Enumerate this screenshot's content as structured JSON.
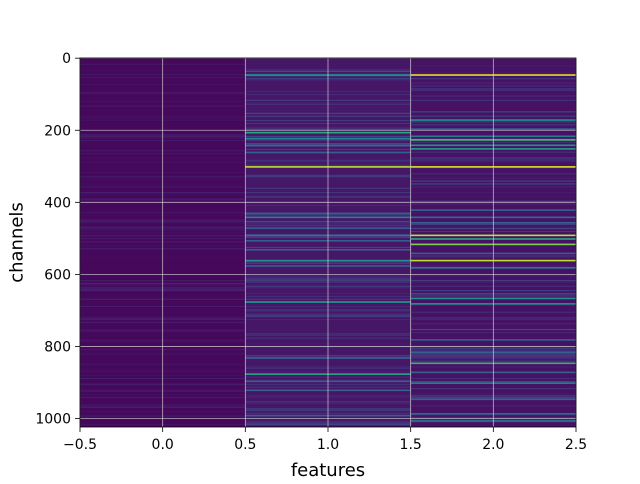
{
  "chart_data": {
    "type": "heatmap",
    "title": "",
    "xlabel": "features",
    "ylabel": "channels",
    "xlim": [
      -0.5,
      2.5
    ],
    "ylim": [
      1023.5,
      -0.5
    ],
    "y_axis_inverted": true,
    "grid": true,
    "colormap": "viridis",
    "n_rows": 1024,
    "n_cols": 3,
    "x_ticks": [
      -0.5,
      0.0,
      0.5,
      1.0,
      1.5,
      2.0,
      2.5
    ],
    "x_tick_labels": [
      "−0.5",
      "0.0",
      "0.5",
      "1.0",
      "1.5",
      "2.0",
      "2.5"
    ],
    "y_ticks": [
      0,
      200,
      400,
      600,
      800,
      1000
    ],
    "y_tick_labels": [
      "0",
      "200",
      "400",
      "600",
      "800",
      "1000"
    ],
    "columns": [
      {
        "feature": 0,
        "background_value": 0.02,
        "highlights": []
      },
      {
        "feature": 1,
        "background_value": 0.06,
        "highlights": [
          {
            "row": 45,
            "value": 0.5
          },
          {
            "row": 205,
            "value": 0.6
          },
          {
            "row": 222,
            "value": 0.45
          },
          {
            "row": 240,
            "value": 0.35
          },
          {
            "row": 260,
            "value": 0.3
          },
          {
            "row": 300,
            "value": 0.9
          },
          {
            "row": 430,
            "value": 0.3
          },
          {
            "row": 440,
            "value": 0.45
          },
          {
            "row": 470,
            "value": 0.3
          },
          {
            "row": 490,
            "value": 0.4
          },
          {
            "row": 505,
            "value": 0.3
          },
          {
            "row": 530,
            "value": 0.3
          },
          {
            "row": 560,
            "value": 0.5
          },
          {
            "row": 575,
            "value": 0.3
          },
          {
            "row": 675,
            "value": 0.55
          },
          {
            "row": 830,
            "value": 0.3
          },
          {
            "row": 875,
            "value": 0.6
          },
          {
            "row": 895,
            "value": 0.3
          },
          {
            "row": 920,
            "value": 0.3
          },
          {
            "row": 990,
            "value": 0.3
          }
        ]
      },
      {
        "feature": 2,
        "background_value": 0.05,
        "highlights": [
          {
            "row": 45,
            "value": 0.95
          },
          {
            "row": 170,
            "value": 0.5
          },
          {
            "row": 195,
            "value": 0.3
          },
          {
            "row": 215,
            "value": 0.4
          },
          {
            "row": 225,
            "value": 0.7
          },
          {
            "row": 240,
            "value": 0.5
          },
          {
            "row": 250,
            "value": 0.55
          },
          {
            "row": 300,
            "value": 0.95
          },
          {
            "row": 420,
            "value": 0.3
          },
          {
            "row": 440,
            "value": 0.35
          },
          {
            "row": 455,
            "value": 0.3
          },
          {
            "row": 490,
            "value": 0.9
          },
          {
            "row": 500,
            "value": 0.6
          },
          {
            "row": 515,
            "value": 0.8
          },
          {
            "row": 540,
            "value": 0.3
          },
          {
            "row": 560,
            "value": 0.9
          },
          {
            "row": 580,
            "value": 0.4
          },
          {
            "row": 665,
            "value": 0.5
          },
          {
            "row": 680,
            "value": 0.5
          },
          {
            "row": 780,
            "value": 0.3
          },
          {
            "row": 815,
            "value": 0.3
          },
          {
            "row": 845,
            "value": 0.65
          },
          {
            "row": 870,
            "value": 0.3
          },
          {
            "row": 900,
            "value": 0.45
          },
          {
            "row": 945,
            "value": 0.3
          },
          {
            "row": 985,
            "value": 0.3
          },
          {
            "row": 1005,
            "value": 0.4
          }
        ]
      }
    ]
  }
}
